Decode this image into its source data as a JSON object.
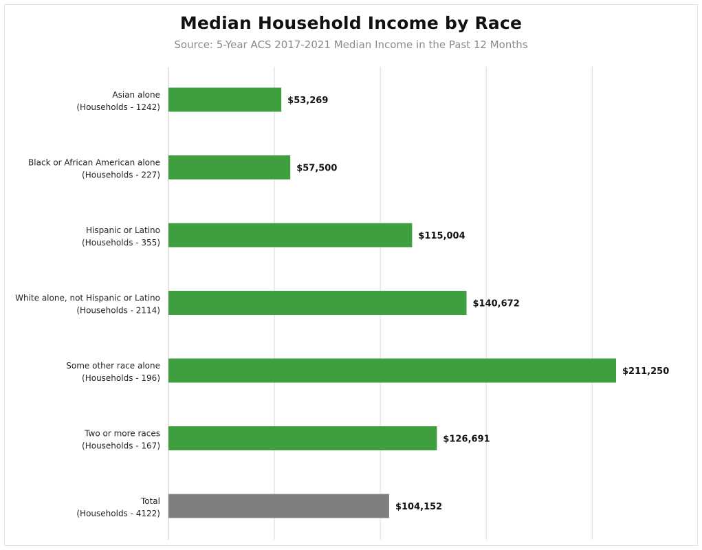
{
  "chart_data": {
    "type": "bar",
    "orientation": "horizontal",
    "title": "Median Household Income by Race",
    "subtitle": "Source: 5-Year ACS 2017-2021 Median Income in the Past 12 Months",
    "xlabel": "",
    "ylabel": "",
    "xlim": [
      0,
      225000
    ],
    "grid": true,
    "categories": [
      {
        "line1": "Asian alone",
        "line2": "(Households - 1242)"
      },
      {
        "line1": "Black or African American alone",
        "line2": "(Households - 227)"
      },
      {
        "line1": "Hispanic or Latino",
        "line2": "(Households - 355)"
      },
      {
        "line1": "White alone, not Hispanic or Latino",
        "line2": "(Households - 2114)"
      },
      {
        "line1": "Some other race alone",
        "line2": "(Households - 196)"
      },
      {
        "line1": "Two or more races",
        "line2": "(Households - 167)"
      },
      {
        "line1": "Total",
        "line2": "(Households - 4122)"
      }
    ],
    "values": [
      53269,
      57500,
      115004,
      140672,
      211250,
      126691,
      104152
    ],
    "value_labels": [
      "$53,269",
      "$57,500",
      "$115,004",
      "$140,672",
      "$211,250",
      "$126,691",
      "$104,152"
    ],
    "colors": {
      "bar": "#3f9f3f",
      "total_bar": "#7f7f7f",
      "grid": "#d9d9d9"
    }
  }
}
